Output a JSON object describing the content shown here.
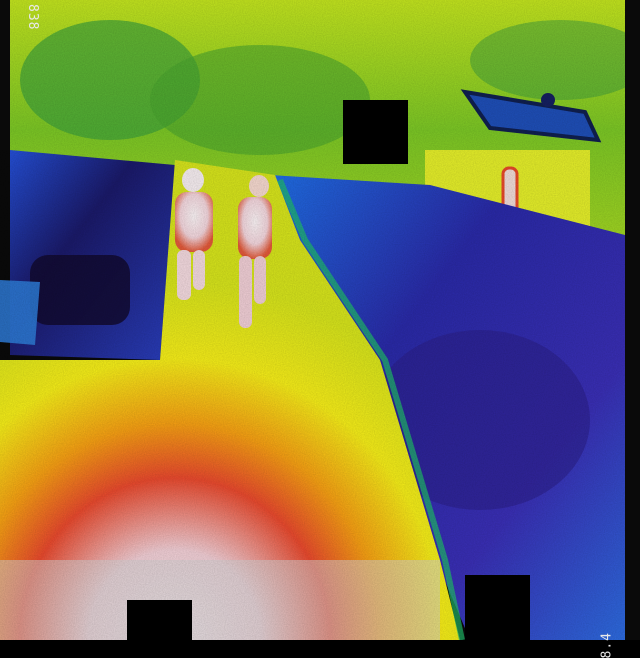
{
  "image": {
    "kind": "thermal camera frame",
    "palette": [
      "#140a3a",
      "#2a2fb8",
      "#1f7fe0",
      "#19c4b0",
      "#3ecb3a",
      "#c8e81e",
      "#f7f11a",
      "#f89a14",
      "#e8261c",
      "#f6e9ee"
    ],
    "readouts": {
      "top_left": "838",
      "bottom_right": "8.4"
    },
    "subjects": [
      "person-left",
      "person-right",
      "house",
      "lamp-post"
    ],
    "redactions": 4
  }
}
